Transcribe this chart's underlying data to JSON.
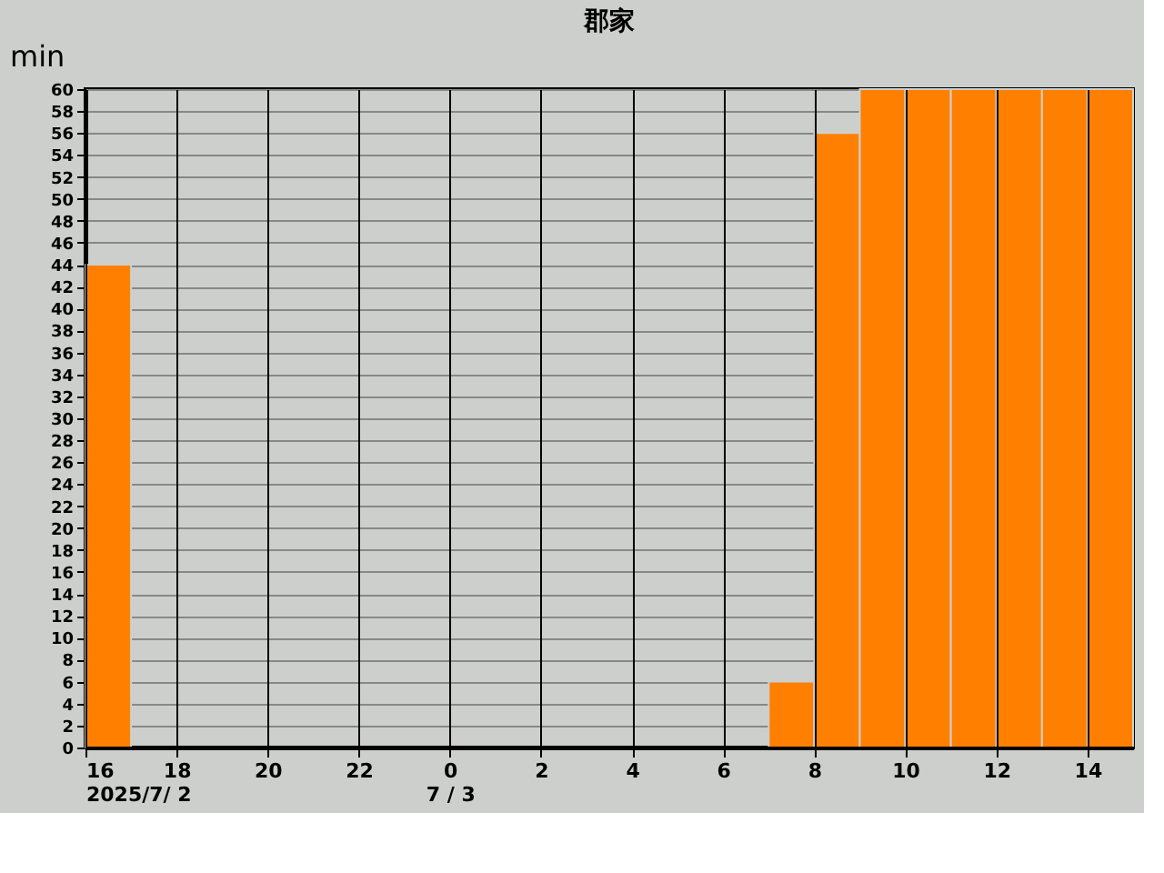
{
  "chart_data": {
    "type": "bar",
    "title": "郡家",
    "ylabel": "min",
    "x": [
      "2025-07-02T16:30",
      "2025-07-02T17:30",
      "2025-07-02T18:30",
      "2025-07-02T19:30",
      "2025-07-02T20:30",
      "2025-07-02T21:30",
      "2025-07-02T22:30",
      "2025-07-02T23:30",
      "2025-07-03T00:30",
      "2025-07-03T01:30",
      "2025-07-03T02:30",
      "2025-07-03T03:30",
      "2025-07-03T04:30",
      "2025-07-03T05:30",
      "2025-07-03T06:30",
      "2025-07-03T07:30",
      "2025-07-03T08:30",
      "2025-07-03T09:30",
      "2025-07-03T10:30",
      "2025-07-03T11:30",
      "2025-07-03T12:30",
      "2025-07-03T13:30",
      "2025-07-03T14:30"
    ],
    "values": [
      44,
      0,
      0,
      0,
      0,
      0,
      0,
      0,
      0,
      0,
      0,
      0,
      0,
      0,
      0,
      6,
      56,
      60,
      60,
      60,
      60,
      60,
      60
    ],
    "color": "#ff8000",
    "xlim": [
      "2025-07-02T16:00",
      "2025-07-03T15:00"
    ],
    "xticks": [
      {
        "value": "2025-07-02T16:00",
        "label": "16\n2025/7/ 2"
      },
      {
        "value": "2025-07-02T18:00",
        "label": "18"
      },
      {
        "value": "2025-07-02T20:00",
        "label": "20"
      },
      {
        "value": "2025-07-02T22:00",
        "label": "22"
      },
      {
        "value": "2025-07-03T00:00",
        "label": "0\n7 / 3"
      },
      {
        "value": "2025-07-03T02:00",
        "label": "2"
      },
      {
        "value": "2025-07-03T04:00",
        "label": "4"
      },
      {
        "value": "2025-07-03T06:00",
        "label": "6"
      },
      {
        "value": "2025-07-03T08:00",
        "label": "8"
      },
      {
        "value": "2025-07-03T10:00",
        "label": "10"
      },
      {
        "value": "2025-07-03T12:00",
        "label": "12"
      },
      {
        "value": "2025-07-03T14:00",
        "label": "14"
      }
    ],
    "ylim": [
      0,
      60
    ],
    "yticks": [
      0,
      2,
      4,
      6,
      8,
      10,
      12,
      14,
      16,
      18,
      20,
      22,
      24,
      26,
      28,
      30,
      32,
      34,
      36,
      38,
      40,
      42,
      44,
      46,
      48,
      50,
      52,
      54,
      56,
      58,
      60
    ],
    "grid": true
  }
}
